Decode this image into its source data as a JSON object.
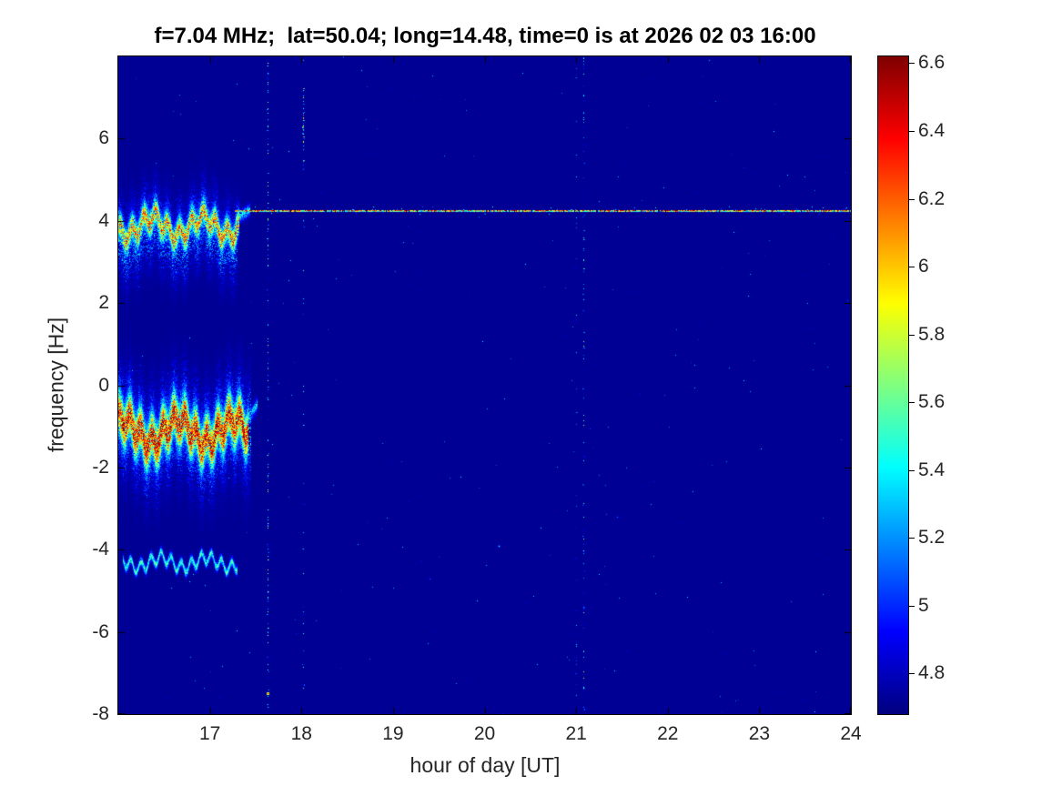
{
  "figure": {
    "background": "#ffffff"
  },
  "chart_data": {
    "type": "heatmap",
    "title": "f=7.04 MHz;  lat=50.04; long=14.48, time=0 is at 2026 02 03 16:00",
    "xlabel": "hour of day [UT]",
    "ylabel": "frequency [Hz]",
    "xlim": [
      16,
      24
    ],
    "ylim": [
      -8,
      8
    ],
    "xticks": [
      "17",
      "18",
      "19",
      "20",
      "21",
      "22",
      "23",
      "24"
    ],
    "yticks": [
      "6",
      "4",
      "2",
      "0",
      "-2",
      "-4",
      "-6",
      "-8"
    ],
    "grid": false,
    "colormap": "jet",
    "background_value": 4.72,
    "colorbar": {
      "position": "right",
      "min": 4.68,
      "max": 6.62,
      "ticks": [
        "6.6",
        "6.4",
        "6.2",
        "6",
        "5.8",
        "5.6",
        "5.4",
        "5.2",
        "5",
        "4.8"
      ]
    },
    "features": [
      {
        "name": "carrier-line",
        "kind": "hline",
        "y": 4.27,
        "t_start": 17.28,
        "t_end": 24.0,
        "value_min": 5.2,
        "value_max": 6.65,
        "dropout": 0.05
      },
      {
        "name": "doppler-trace-upper-halo",
        "kind": "trace",
        "t_start": 16.0,
        "t_end": 17.3,
        "y_center": 3.7,
        "drift": 0,
        "spread_hz": 0.55,
        "core_value": 5.6,
        "speckle": 2.2,
        "waves": [
          {
            "amp": 0.18,
            "period": 0.13,
            "phase": 0.6
          },
          {
            "amp": 0.25,
            "period": 0.55,
            "phase": 3.6
          }
        ]
      },
      {
        "name": "doppler-trace-upper",
        "kind": "trace",
        "t_start": 16.0,
        "t_end": 17.32,
        "y_center": 3.88,
        "drift": 0,
        "spread_hz": 0.22,
        "core_value": 6.45,
        "speckle": 0.45,
        "waves": [
          {
            "amp": 0.18,
            "period": 0.13,
            "phase": 0.6
          },
          {
            "amp": 0.22,
            "period": 0.55,
            "phase": 3.6
          }
        ]
      },
      {
        "name": "doppler-trace-upper-tail",
        "kind": "trace",
        "t_start": 17.28,
        "t_end": 17.44,
        "y_center": 4.05,
        "drift": 1.5,
        "spread_hz": 0.09,
        "core_value": 5.6,
        "speckle": 0.4,
        "waves": []
      },
      {
        "name": "doppler-trace-mid-halo",
        "kind": "trace",
        "t_start": 16.0,
        "t_end": 17.45,
        "y_center": -1.15,
        "drift": 0,
        "spread_hz": 0.75,
        "core_value": 5.7,
        "speckle": 2.4,
        "waves": [
          {
            "amp": 0.22,
            "period": 0.12,
            "phase": 1.2
          },
          {
            "amp": 0.3,
            "period": 0.6,
            "phase": 1.0
          }
        ]
      },
      {
        "name": "doppler-trace-mid",
        "kind": "trace",
        "t_start": 16.0,
        "t_end": 17.42,
        "y_center": -1.1,
        "drift": 0,
        "spread_hz": 0.38,
        "core_value": 6.75,
        "speckle": 0.35,
        "waves": [
          {
            "amp": 0.22,
            "period": 0.12,
            "phase": 1.2
          },
          {
            "amp": 0.28,
            "period": 0.6,
            "phase": 1.0
          }
        ]
      },
      {
        "name": "doppler-trace-mid-tail",
        "kind": "trace",
        "t_start": 17.36,
        "t_end": 17.52,
        "y_center": -1.0,
        "drift": 3.5,
        "spread_hz": 0.11,
        "core_value": 5.5,
        "speckle": 0.5,
        "waves": []
      },
      {
        "name": "doppler-trace-lower",
        "kind": "trace",
        "t_start": 16.05,
        "t_end": 17.3,
        "y_center": -4.3,
        "drift": 0,
        "spread_hz": 0.07,
        "core_value": 5.7,
        "speckle": 0.25,
        "waves": [
          {
            "amp": 0.14,
            "period": 0.11,
            "phase": 0.0
          },
          {
            "amp": 0.12,
            "period": 0.5,
            "phase": 2.0
          }
        ]
      },
      {
        "name": "interference-column-1",
        "kind": "vline",
        "t": 17.63,
        "density": 0.22,
        "value_max": 5.9
      },
      {
        "name": "interference-column-2",
        "kind": "vline",
        "t": 18.02,
        "density": 0.06,
        "value_max": 5.6
      },
      {
        "name": "interference-column-2-upper",
        "kind": "vline",
        "t": 18.02,
        "density": 0.3,
        "value_max": 6.35,
        "f_range": [
          5.2,
          7.4
        ]
      },
      {
        "name": "interference-column-3",
        "kind": "vline",
        "t": 21.0,
        "density": 0.06,
        "value_max": 5.4
      },
      {
        "name": "interference-column-3b",
        "kind": "vline",
        "t": 21.08,
        "density": 0.16,
        "value_max": 5.7
      },
      {
        "name": "speck-1",
        "kind": "dot",
        "t": 17.63,
        "f": -7.5,
        "value": 6.3
      },
      {
        "name": "speck-2",
        "kind": "dot",
        "t": 20.15,
        "f": -3.9,
        "value": 5.35
      },
      {
        "name": "speck-3",
        "kind": "dot",
        "t": 21.45,
        "f": -3.2,
        "value": 5.15
      },
      {
        "name": "speck-4",
        "kind": "dot",
        "t": 19.4,
        "f": -4.7,
        "value": 5.1
      }
    ]
  }
}
